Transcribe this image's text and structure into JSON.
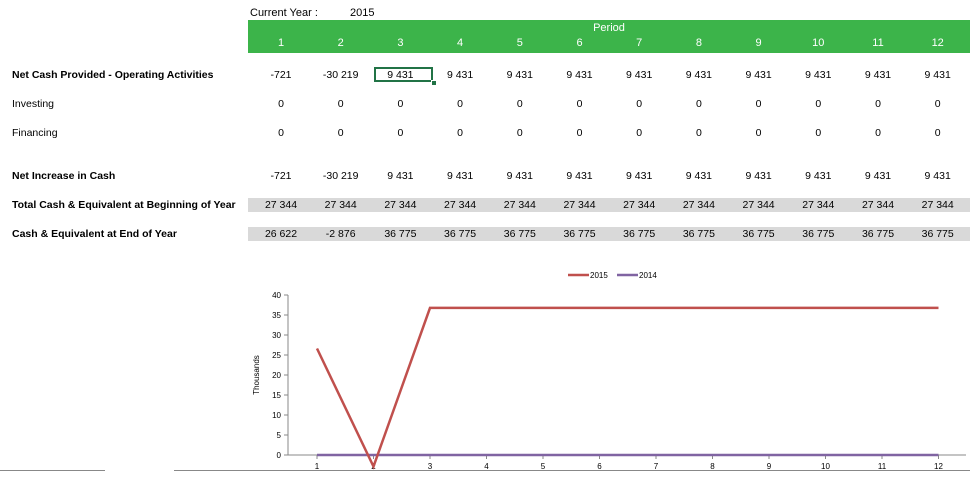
{
  "current_year": {
    "label": "Current Year :",
    "value": "2015"
  },
  "period_header": {
    "title": "Period",
    "periods": [
      "1",
      "2",
      "3",
      "4",
      "5",
      "6",
      "7",
      "8",
      "9",
      "10",
      "11",
      "12"
    ]
  },
  "rows": [
    {
      "label": "Net Cash Provided - Operating Activities",
      "bold": true,
      "grey": false,
      "values": [
        "-721",
        "-30 219",
        "9 431",
        "9 431",
        "9 431",
        "9 431",
        "9 431",
        "9 431",
        "9 431",
        "9 431",
        "9 431",
        "9 431"
      ]
    },
    {
      "label": "Investing",
      "bold": false,
      "grey": false,
      "values": [
        "0",
        "0",
        "0",
        "0",
        "0",
        "0",
        "0",
        "0",
        "0",
        "0",
        "0",
        "0"
      ]
    },
    {
      "label": "Financing",
      "bold": false,
      "grey": false,
      "values": [
        "0",
        "0",
        "0",
        "0",
        "0",
        "0",
        "0",
        "0",
        "0",
        "0",
        "0",
        "0"
      ]
    },
    {
      "label": "Net Increase in Cash",
      "bold": true,
      "grey": false,
      "values": [
        "-721",
        "-30 219",
        "9 431",
        "9 431",
        "9 431",
        "9 431",
        "9 431",
        "9 431",
        "9 431",
        "9 431",
        "9 431",
        "9 431"
      ]
    },
    {
      "label": "Total Cash & Equivalent at Beginning of Year",
      "bold": true,
      "grey": true,
      "values": [
        "27 344",
        "27 344",
        "27 344",
        "27 344",
        "27 344",
        "27 344",
        "27 344",
        "27 344",
        "27 344",
        "27 344",
        "27 344",
        "27 344"
      ]
    },
    {
      "label": "Cash & Equivalent at End of Year",
      "bold": true,
      "grey": true,
      "values": [
        "26 622",
        "-2 876",
        "36 775",
        "36 775",
        "36 775",
        "36 775",
        "36 775",
        "36 775",
        "36 775",
        "36 775",
        "36 775",
        "36 775"
      ]
    }
  ],
  "selected_cell": {
    "row": 0,
    "col": 2
  },
  "colors": {
    "header_green": "#3cb44a",
    "band_grey": "#d9d9d9",
    "selection": "#217346",
    "series_2015": "#c0504d",
    "series_2014": "#8064a2"
  },
  "chart_data": {
    "type": "line",
    "x": [
      1,
      2,
      3,
      4,
      5,
      6,
      7,
      8,
      9,
      10,
      11,
      12
    ],
    "series": [
      {
        "name": "2015",
        "color": "#c0504d",
        "values": [
          26.622,
          -2.876,
          36.775,
          36.775,
          36.775,
          36.775,
          36.775,
          36.775,
          36.775,
          36.775,
          36.775,
          36.775
        ]
      },
      {
        "name": "2014",
        "color": "#8064a2",
        "values": [
          0,
          0,
          0,
          0,
          0,
          0,
          0,
          0,
          0,
          0,
          0,
          0
        ]
      }
    ],
    "ylabel": "Thousands",
    "ylim": [
      0,
      40
    ],
    "yticks": [
      "0",
      "5",
      "10",
      "15",
      "20",
      "25",
      "30",
      "35",
      "40"
    ],
    "xticks": [
      "1",
      "2",
      "3",
      "4",
      "5",
      "6",
      "7",
      "8",
      "9",
      "10",
      "11",
      "12"
    ],
    "legend_position": "top-center",
    "grid": false
  }
}
